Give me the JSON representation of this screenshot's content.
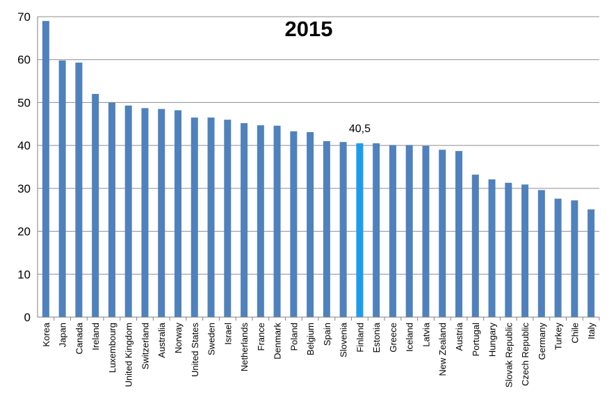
{
  "chart_data": {
    "type": "bar",
    "title": "2015",
    "xlabel": "",
    "ylabel": "",
    "ylim": [
      0,
      70
    ],
    "y_ticks": [
      0,
      10,
      20,
      30,
      40,
      50,
      60,
      70
    ],
    "grid": true,
    "legend": "none",
    "categories": [
      "Korea",
      "Japan",
      "Canada",
      "Ireland",
      "Luxembourg",
      "United Kingdom",
      "Switzerland",
      "Australia",
      "Norway",
      "United States",
      "Sweden",
      "Israel",
      "Netherlands",
      "France",
      "Denmark",
      "Poland",
      "Belgium",
      "Spain",
      "Slovenia",
      "Finland",
      "Estonia",
      "Greece",
      "Iceland",
      "Latvia",
      "New Zealand",
      "Austria",
      "Portugal",
      "Hungary",
      "Slovak Republic",
      "Czech Republic",
      "Germany",
      "Turkey",
      "Chile",
      "Italy"
    ],
    "values": [
      69.0,
      59.8,
      59.3,
      52.0,
      50.0,
      49.3,
      48.7,
      48.5,
      48.2,
      46.5,
      46.5,
      46.0,
      45.2,
      44.7,
      44.6,
      43.3,
      43.1,
      41.0,
      40.8,
      40.5,
      40.5,
      40.1,
      40.1,
      39.9,
      39.0,
      38.7,
      33.2,
      32.1,
      31.3,
      30.9,
      29.6,
      27.6,
      27.2,
      25.1
    ],
    "highlight": {
      "category": "Finland",
      "value_label": "40,5"
    },
    "colors": {
      "bar": "#4f81bd",
      "highlight_bar": "#1e9cec",
      "grid": "#8c8c8c",
      "axis": "#7f7f7f",
      "text": "#000000"
    }
  }
}
